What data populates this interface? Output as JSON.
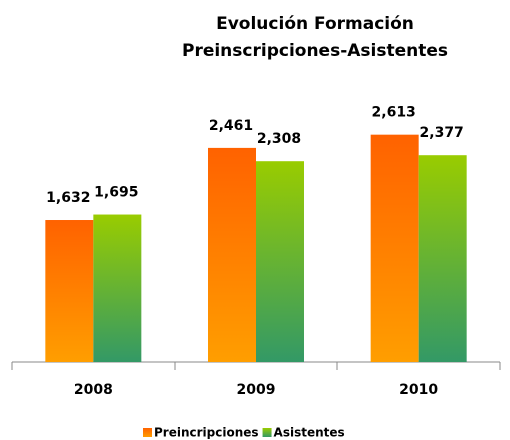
{
  "chart_data": {
    "type": "bar",
    "title": [
      "Evolución Formación",
      "Preinscripciones-Asistentes"
    ],
    "categories": [
      "2008",
      "2009",
      "2010"
    ],
    "series": [
      {
        "name": "Preincripciones",
        "color": "#ff6200",
        "color2": "#ff9e00",
        "values": [
          1632,
          2461,
          2613
        ],
        "value_labels": [
          "1,632",
          "2,461",
          "2,613"
        ]
      },
      {
        "name": "Asistentes",
        "color": "#99cc00",
        "color2": "#339966",
        "values": [
          1695,
          2308,
          2377
        ],
        "value_labels": [
          "1,695",
          "2,308",
          "2,377"
        ]
      }
    ],
    "ylim": [
      0,
      3000
    ],
    "legend": "bottom"
  }
}
